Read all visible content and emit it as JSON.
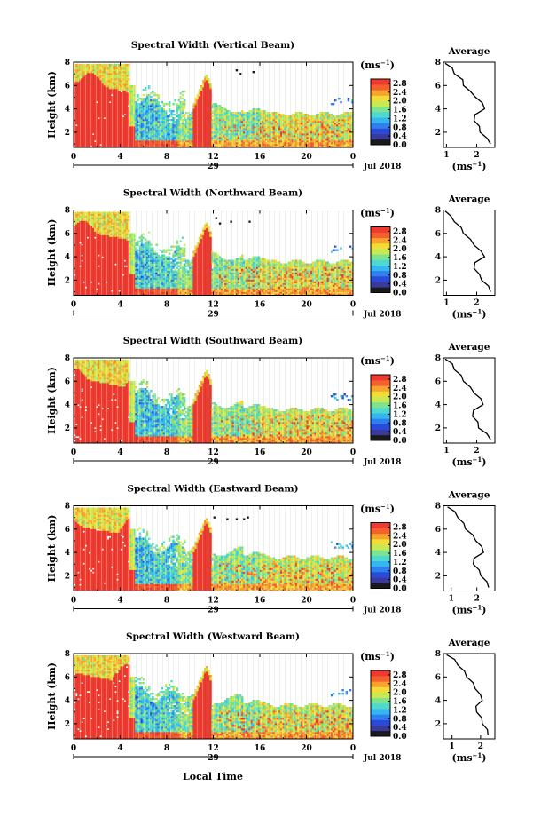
{
  "figure": {
    "xlabel": "Local Time",
    "date_label": "Jul 2018",
    "units_label": "(ms",
    "units_exp": "−1",
    "avg_title": "Average"
  },
  "colorbar": {
    "ticks": [
      "0.0",
      "0.4",
      "0.8",
      "1.2",
      "1.6",
      "2.0",
      "2.4",
      "2.8"
    ],
    "range": [
      0,
      3.0
    ],
    "colors": [
      "#1a1a1a",
      "#3a3a9a",
      "#2a4ad8",
      "#2f7fef",
      "#35b6ee",
      "#4fd8d0",
      "#7ee38f",
      "#c7ea52",
      "#f2dc3a",
      "#f7a32e",
      "#f4612e",
      "#ee3a2f"
    ]
  },
  "chart_data": [
    {
      "type": "heatmap",
      "title": "Spectral Width (Vertical Beam)",
      "ylabel": "Height (km)",
      "x_tick_labels": [
        "0",
        "4",
        "8",
        "12",
        "16",
        "20",
        "0"
      ],
      "x_day_label": "29",
      "y_ticks": [
        2,
        4,
        6,
        8
      ],
      "ylim": [
        0.7,
        8.0
      ],
      "xlim": [
        0,
        24
      ],
      "colorbar_range_ms": [
        0,
        3.0
      ],
      "average_profile": {
        "xlabel": "(ms",
        "x_ticks": [
          1,
          2
        ],
        "xlim": [
          0.9,
          2.6
        ],
        "height_km": [
          1.0,
          1.5,
          2.0,
          2.5,
          3.0,
          3.5,
          4.0,
          4.5,
          5.0,
          5.5,
          6.0,
          6.5,
          7.0,
          7.5,
          7.9
        ],
        "width_ms": [
          2.5,
          2.3,
          2.15,
          2.05,
          1.95,
          1.9,
          2.3,
          2.15,
          2.0,
          1.75,
          1.6,
          1.5,
          1.3,
          1.15,
          1.0
        ]
      }
    },
    {
      "type": "heatmap",
      "title": "Spectral Width (Northward Beam)",
      "ylabel": "Height (km)",
      "x_tick_labels": [
        "0",
        "4",
        "8",
        "12",
        "16",
        "20",
        "0"
      ],
      "x_day_label": "29",
      "y_ticks": [
        2,
        4,
        6,
        8
      ],
      "ylim": [
        0.7,
        8.0
      ],
      "xlim": [
        0,
        24
      ],
      "colorbar_range_ms": [
        0,
        3.0
      ],
      "average_profile": {
        "xlabel": "(ms",
        "x_ticks": [
          1,
          2
        ],
        "xlim": [
          0.9,
          2.6
        ],
        "height_km": [
          1.0,
          1.5,
          2.0,
          2.5,
          3.0,
          3.5,
          4.0,
          4.5,
          5.0,
          5.5,
          6.0,
          6.5,
          7.0,
          7.5,
          7.9
        ],
        "width_ms": [
          2.5,
          2.35,
          2.2,
          2.05,
          1.95,
          1.9,
          2.3,
          2.1,
          1.95,
          1.75,
          1.6,
          1.45,
          1.3,
          1.1,
          1.0
        ]
      }
    },
    {
      "type": "heatmap",
      "title": "Spectral Width (Southward Beam)",
      "ylabel": "Height (km)",
      "x_tick_labels": [
        "0",
        "4",
        "8",
        "12",
        "16",
        "20",
        "0"
      ],
      "x_day_label": "29",
      "y_ticks": [
        2,
        4,
        6,
        8
      ],
      "ylim": [
        0.7,
        8.0
      ],
      "xlim": [
        0,
        24
      ],
      "colorbar_range_ms": [
        0,
        3.0
      ],
      "average_profile": {
        "xlabel": "(ms",
        "x_ticks": [
          1,
          2
        ],
        "xlim": [
          0.9,
          2.6
        ],
        "height_km": [
          1.0,
          1.5,
          2.0,
          2.5,
          3.0,
          3.5,
          4.0,
          4.5,
          5.0,
          5.5,
          6.0,
          6.5,
          7.0,
          7.5,
          7.9
        ],
        "width_ms": [
          2.5,
          2.3,
          2.1,
          2.0,
          1.9,
          1.85,
          2.25,
          2.1,
          1.95,
          1.75,
          1.6,
          1.45,
          1.3,
          1.15,
          1.0
        ]
      }
    },
    {
      "type": "heatmap",
      "title": "Spectral Width (Eastward Beam)",
      "ylabel": "Height (km)",
      "x_tick_labels": [
        "0",
        "4",
        "8",
        "12",
        "16",
        "20",
        "0"
      ],
      "x_day_label": "29",
      "y_ticks": [
        2,
        4,
        6,
        8
      ],
      "ylim": [
        0.7,
        8.0
      ],
      "xlim": [
        0,
        24
      ],
      "colorbar_range_ms": [
        0,
        3.0
      ],
      "average_profile": {
        "xlabel": "(ms",
        "x_ticks": [
          1,
          2
        ],
        "xlim": [
          0.7,
          2.7
        ],
        "height_km": [
          1.0,
          1.5,
          2.0,
          2.5,
          3.0,
          3.5,
          4.0,
          4.5,
          5.0,
          5.5,
          6.0,
          6.5,
          7.0,
          7.5,
          7.9
        ],
        "width_ms": [
          2.5,
          2.35,
          2.2,
          2.05,
          1.9,
          1.85,
          2.3,
          2.15,
          2.0,
          1.8,
          1.6,
          1.45,
          1.3,
          1.1,
          0.9
        ]
      }
    },
    {
      "type": "heatmap",
      "title": "Spectral Width (Westward Beam)",
      "ylabel": "Height (km)",
      "x_tick_labels": [
        "0",
        "4",
        "8",
        "12",
        "16",
        "20",
        "0"
      ],
      "x_day_label": "29",
      "y_ticks": [
        2,
        4,
        6,
        8
      ],
      "ylim": [
        0.7,
        8.0
      ],
      "xlim": [
        0,
        24
      ],
      "colorbar_range_ms": [
        0,
        3.0
      ],
      "average_profile": {
        "xlabel": "(ms",
        "x_ticks": [
          1,
          2
        ],
        "xlim": [
          0.7,
          2.5
        ],
        "height_km": [
          1.0,
          1.5,
          2.0,
          2.5,
          3.0,
          3.5,
          4.0,
          4.5,
          5.0,
          5.5,
          6.0,
          6.5,
          7.0,
          7.5,
          7.9
        ],
        "width_ms": [
          2.3,
          2.2,
          2.1,
          2.0,
          1.9,
          1.8,
          2.1,
          1.95,
          1.85,
          1.7,
          1.55,
          1.4,
          1.25,
          1.05,
          0.85
        ]
      }
    }
  ]
}
